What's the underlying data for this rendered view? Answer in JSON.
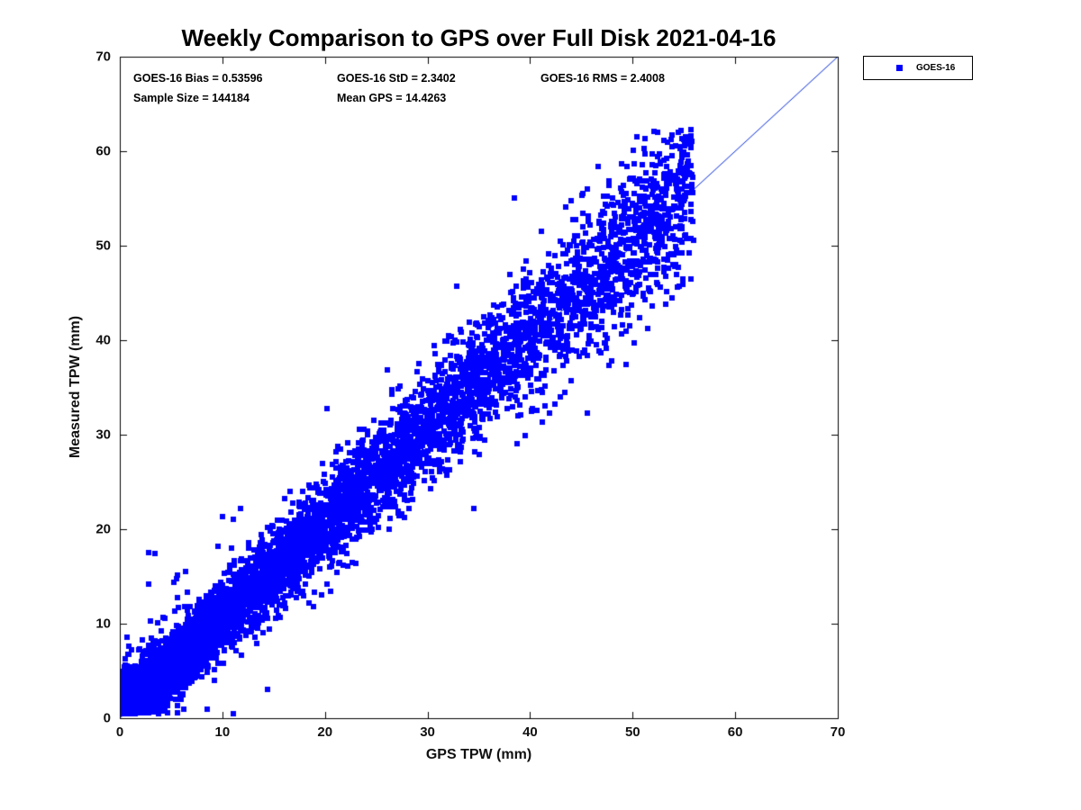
{
  "figure": {
    "title": "Weekly Comparison to GPS over Full Disk 2021-04-16",
    "background": "#ffffff"
  },
  "annotations": {
    "bias": "GOES-16 Bias = 0.53596",
    "std": "GOES-16 StD = 2.3402",
    "rms": "GOES-16 RMS = 2.4008",
    "sample_size": "Sample Size = 144184",
    "mean_gps": "Mean GPS = 14.4263"
  },
  "legend": {
    "label": "GOES-16",
    "marker_color": "#0000ff"
  },
  "chart_data": {
    "type": "scatter",
    "title": "Weekly Comparison to GPS over Full Disk 2021-04-16",
    "xlabel": "GPS TPW (mm)",
    "ylabel": "Measured TPW (mm)",
    "xlim": [
      0,
      70
    ],
    "ylim": [
      0,
      70
    ],
    "xticks": [
      0,
      10,
      20,
      30,
      40,
      50,
      60,
      70
    ],
    "yticks": [
      0,
      10,
      20,
      30,
      40,
      50,
      60,
      70
    ],
    "grid": false,
    "legend_position": "top-right-outside",
    "reference_line": {
      "type": "identity y=x",
      "from": [
        0,
        0
      ],
      "to": [
        70,
        70
      ],
      "color": "#0028d7"
    },
    "stats": {
      "bias": 0.53596,
      "std": 2.3402,
      "rms": 2.4008,
      "sample_size": 144184,
      "mean_gps": 14.4263
    },
    "series": [
      {
        "name": "GOES-16",
        "marker": "filled-square",
        "color": "#0000ff",
        "relationship": "y approx x + 0.536 mm with residual std approx 2.34 mm; dense cloud along 1:1 line",
        "x_range": [
          0.3,
          56
        ],
        "y_range": [
          0.5,
          62.3
        ],
        "synthesis": {
          "seed": 20210416,
          "n_points": 9000,
          "x_min": 0.3,
          "x_max": 56,
          "x_skew": 2.8,
          "y_min": 0.5,
          "y_max": 62.3,
          "noise_base": 1.3,
          "noise_slope": 2.9,
          "outlier_frac": 0.02,
          "outlier_std": 5.5
        }
      }
    ]
  }
}
